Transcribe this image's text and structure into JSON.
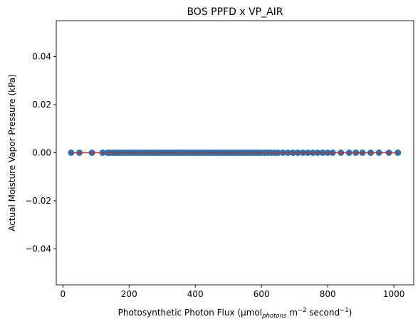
{
  "chart_data": {
    "type": "scatter",
    "title": "BOS PPFD x VP_AIR",
    "xlabel": {
      "main": "Photosynthetic Photon Flux (μmol",
      "sub": "photons",
      "mid": " m",
      "sup1": "−2",
      "mid2": " second",
      "sup2": "−1",
      "end": ")"
    },
    "ylabel": "Actual Moisture Vapor Pressure (kPa)",
    "xlim": [
      -20,
      1060
    ],
    "ylim": [
      -0.055,
      0.055
    ],
    "xticks": [
      0,
      200,
      400,
      600,
      800,
      1000
    ],
    "yticks": [
      -0.04,
      -0.02,
      0.0,
      0.02,
      0.04
    ],
    "xtick_labels": [
      "0",
      "200",
      "400",
      "600",
      "800",
      "1000"
    ],
    "ytick_labels": [
      "−0.04",
      "−0.02",
      "0.00",
      "0.02",
      "0.04"
    ],
    "colors": {
      "points": "#1f77b4",
      "fit_line": "#d62728"
    },
    "grid": false,
    "fit_line": {
      "x": [
        25,
        1012
      ],
      "y": [
        0,
        0
      ]
    },
    "series": [
      {
        "x": [
          25,
          50,
          88,
          120,
          135,
          142,
          150,
          158,
          165,
          172,
          180,
          188,
          195,
          203,
          210,
          218,
          225,
          232,
          240,
          248,
          255,
          262,
          270,
          278,
          285,
          292,
          300,
          308,
          315,
          322,
          330,
          338,
          345,
          352,
          360,
          368,
          375,
          383,
          390,
          398,
          405,
          413,
          420,
          428,
          435,
          443,
          450,
          458,
          465,
          473,
          480,
          488,
          495,
          503,
          510,
          518,
          525,
          533,
          540,
          548,
          555,
          563,
          570,
          578,
          585,
          593,
          600,
          610,
          620,
          630,
          640,
          650,
          665,
          680,
          695,
          710,
          725,
          740,
          755,
          770,
          785,
          800,
          815,
          840,
          865,
          885,
          905,
          930,
          955,
          985,
          1012
        ],
        "y": [
          0,
          0,
          0,
          0,
          0,
          0,
          0,
          0,
          0,
          0,
          0,
          0,
          0,
          0,
          0,
          0,
          0,
          0,
          0,
          0,
          0,
          0,
          0,
          0,
          0,
          0,
          0,
          0,
          0,
          0,
          0,
          0,
          0,
          0,
          0,
          0,
          0,
          0,
          0,
          0,
          0,
          0,
          0,
          0,
          0,
          0,
          0,
          0,
          0,
          0,
          0,
          0,
          0,
          0,
          0,
          0,
          0,
          0,
          0,
          0,
          0,
          0,
          0,
          0,
          0,
          0,
          0,
          0,
          0,
          0,
          0,
          0,
          0,
          0,
          0,
          0,
          0,
          0,
          0,
          0,
          0,
          0,
          0,
          0,
          0,
          0,
          0,
          0,
          0,
          0,
          0
        ]
      }
    ]
  }
}
